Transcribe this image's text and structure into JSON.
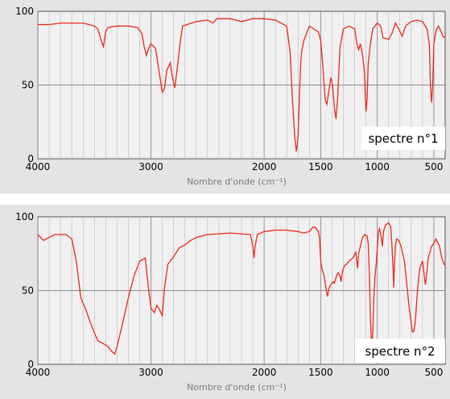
{
  "chart_data": [
    {
      "type": "line",
      "label": "spectre n°1",
      "xlabel": "Nombre d'onde (cm⁻¹)",
      "xlim": [
        4000,
        400
      ],
      "ylim": [
        0,
        100
      ],
      "xticks": [
        4000,
        3000,
        2000,
        1500,
        1000,
        500
      ],
      "yticks": [
        0,
        50,
        100
      ],
      "grid": true,
      "line_color": "#e8291c",
      "series": [
        {
          "points": [
            [
              4000,
              91
            ],
            [
              3900,
              91
            ],
            [
              3800,
              92
            ],
            [
              3700,
              92
            ],
            [
              3600,
              92
            ],
            [
              3500,
              90
            ],
            [
              3470,
              88
            ],
            [
              3440,
              80
            ],
            [
              3420,
              76
            ],
            [
              3400,
              86
            ],
            [
              3380,
              89
            ],
            [
              3300,
              90
            ],
            [
              3200,
              90
            ],
            [
              3120,
              89
            ],
            [
              3080,
              85
            ],
            [
              3060,
              76
            ],
            [
              3040,
              70
            ],
            [
              3020,
              75
            ],
            [
              3000,
              78
            ],
            [
              2960,
              75
            ],
            [
              2930,
              60
            ],
            [
              2900,
              45
            ],
            [
              2880,
              48
            ],
            [
              2860,
              60
            ],
            [
              2830,
              65
            ],
            [
              2810,
              55
            ],
            [
              2790,
              48
            ],
            [
              2770,
              60
            ],
            [
              2740,
              80
            ],
            [
              2720,
              90
            ],
            [
              2600,
              93
            ],
            [
              2500,
              94
            ],
            [
              2450,
              92
            ],
            [
              2420,
              95
            ],
            [
              2300,
              95
            ],
            [
              2200,
              93
            ],
            [
              2100,
              95
            ],
            [
              2000,
              95
            ],
            [
              1900,
              94
            ],
            [
              1800,
              90
            ],
            [
              1770,
              72
            ],
            [
              1750,
              40
            ],
            [
              1730,
              15
            ],
            [
              1715,
              5
            ],
            [
              1700,
              15
            ],
            [
              1690,
              38
            ],
            [
              1680,
              60
            ],
            [
              1670,
              72
            ],
            [
              1650,
              80
            ],
            [
              1620,
              86
            ],
            [
              1600,
              90
            ],
            [
              1560,
              88
            ],
            [
              1520,
              86
            ],
            [
              1500,
              80
            ],
            [
              1480,
              62
            ],
            [
              1460,
              40
            ],
            [
              1445,
              37
            ],
            [
              1430,
              45
            ],
            [
              1410,
              55
            ],
            [
              1395,
              50
            ],
            [
              1380,
              35
            ],
            [
              1365,
              27
            ],
            [
              1350,
              42
            ],
            [
              1330,
              75
            ],
            [
              1300,
              88
            ],
            [
              1250,
              90
            ],
            [
              1200,
              88
            ],
            [
              1180,
              78
            ],
            [
              1165,
              74
            ],
            [
              1150,
              78
            ],
            [
              1130,
              70
            ],
            [
              1115,
              60
            ],
            [
              1100,
              32
            ],
            [
              1090,
              40
            ],
            [
              1080,
              65
            ],
            [
              1060,
              78
            ],
            [
              1040,
              88
            ],
            [
              1000,
              92
            ],
            [
              970,
              90
            ],
            [
              950,
              82
            ],
            [
              900,
              81
            ],
            [
              870,
              85
            ],
            [
              840,
              92
            ],
            [
              810,
              88
            ],
            [
              780,
              83
            ],
            [
              750,
              90
            ],
            [
              700,
              93
            ],
            [
              650,
              94
            ],
            [
              600,
              93
            ],
            [
              560,
              88
            ],
            [
              540,
              78
            ],
            [
              530,
              50
            ],
            [
              520,
              38
            ],
            [
              510,
              50
            ],
            [
              500,
              78
            ],
            [
              480,
              87
            ],
            [
              460,
              90
            ],
            [
              440,
              87
            ],
            [
              420,
              83
            ],
            [
              400,
              82
            ]
          ]
        }
      ]
    },
    {
      "type": "line",
      "label": "spectre n°2",
      "xlabel": "Nombre d'onde (cm⁻¹)",
      "xlim": [
        4000,
        400
      ],
      "ylim": [
        0,
        100
      ],
      "xticks": [
        4000,
        3000,
        2000,
        1500,
        1000,
        500
      ],
      "yticks": [
        0,
        50,
        100
      ],
      "grid": true,
      "line_color": "#e8291c",
      "series": [
        {
          "points": [
            [
              4000,
              88
            ],
            [
              3950,
              84
            ],
            [
              3900,
              86
            ],
            [
              3850,
              88
            ],
            [
              3750,
              88
            ],
            [
              3700,
              85
            ],
            [
              3660,
              70
            ],
            [
              3620,
              45
            ],
            [
              3580,
              38
            ],
            [
              3520,
              25
            ],
            [
              3470,
              16
            ],
            [
              3420,
              14
            ],
            [
              3380,
              12
            ],
            [
              3350,
              9
            ],
            [
              3320,
              7
            ],
            [
              3300,
              12
            ],
            [
              3250,
              28
            ],
            [
              3200,
              45
            ],
            [
              3150,
              60
            ],
            [
              3100,
              70
            ],
            [
              3050,
              72
            ],
            [
              3020,
              50
            ],
            [
              3000,
              38
            ],
            [
              2970,
              35
            ],
            [
              2950,
              40
            ],
            [
              2930,
              38
            ],
            [
              2900,
              33
            ],
            [
              2880,
              52
            ],
            [
              2850,
              68
            ],
            [
              2800,
              73
            ],
            [
              2750,
              79
            ],
            [
              2700,
              81
            ],
            [
              2650,
              84
            ],
            [
              2600,
              86
            ],
            [
              2550,
              87
            ],
            [
              2500,
              88
            ],
            [
              2300,
              89
            ],
            [
              2120,
              88
            ],
            [
              2100,
              80
            ],
            [
              2090,
              72
            ],
            [
              2080,
              80
            ],
            [
              2060,
              88
            ],
            [
              2000,
              90
            ],
            [
              1900,
              91
            ],
            [
              1800,
              91
            ],
            [
              1700,
              90
            ],
            [
              1650,
              89
            ],
            [
              1600,
              90
            ],
            [
              1570,
              93
            ],
            [
              1550,
              93
            ],
            [
              1520,
              90
            ],
            [
              1510,
              85
            ],
            [
              1500,
              70
            ],
            [
              1490,
              65
            ],
            [
              1470,
              60
            ],
            [
              1450,
              50
            ],
            [
              1440,
              46
            ],
            [
              1425,
              52
            ],
            [
              1410,
              54
            ],
            [
              1390,
              56
            ],
            [
              1380,
              55
            ],
            [
              1360,
              60
            ],
            [
              1345,
              62
            ],
            [
              1330,
              60
            ],
            [
              1320,
              56
            ],
            [
              1310,
              62
            ],
            [
              1290,
              67
            ],
            [
              1270,
              68
            ],
            [
              1250,
              70
            ],
            [
              1230,
              71
            ],
            [
              1210,
              73
            ],
            [
              1190,
              76
            ],
            [
              1175,
              65
            ],
            [
              1165,
              75
            ],
            [
              1150,
              80
            ],
            [
              1130,
              86
            ],
            [
              1110,
              88
            ],
            [
              1090,
              87
            ],
            [
              1080,
              82
            ],
            [
              1070,
              62
            ],
            [
              1060,
              30
            ],
            [
              1050,
              13
            ],
            [
              1040,
              20
            ],
            [
              1030,
              45
            ],
            [
              1020,
              60
            ],
            [
              1010,
              68
            ],
            [
              990,
              90
            ],
            [
              980,
              92
            ],
            [
              965,
              86
            ],
            [
              955,
              80
            ],
            [
              945,
              90
            ],
            [
              930,
              94
            ],
            [
              900,
              96
            ],
            [
              880,
              93
            ],
            [
              870,
              80
            ],
            [
              860,
              65
            ],
            [
              855,
              52
            ],
            [
              850,
              65
            ],
            [
              840,
              80
            ],
            [
              830,
              85
            ],
            [
              810,
              84
            ],
            [
              790,
              80
            ],
            [
              760,
              70
            ],
            [
              740,
              55
            ],
            [
              720,
              40
            ],
            [
              700,
              28
            ],
            [
              690,
              22
            ],
            [
              680,
              22
            ],
            [
              665,
              28
            ],
            [
              650,
              45
            ],
            [
              630,
              62
            ],
            [
              620,
              66
            ],
            [
              600,
              70
            ],
            [
              585,
              60
            ],
            [
              575,
              54
            ],
            [
              565,
              60
            ],
            [
              550,
              72
            ],
            [
              520,
              80
            ],
            [
              500,
              82
            ],
            [
              480,
              85
            ],
            [
              450,
              80
            ],
            [
              430,
              72
            ],
            [
              410,
              68
            ],
            [
              400,
              67
            ]
          ]
        }
      ]
    }
  ]
}
